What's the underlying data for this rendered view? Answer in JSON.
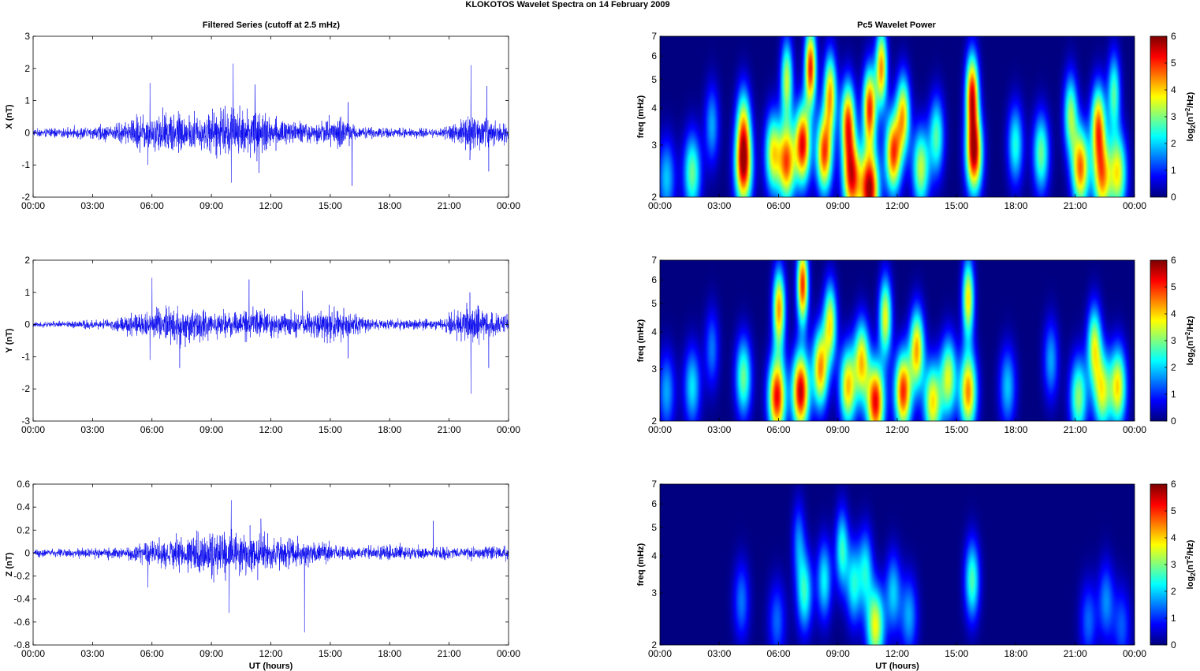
{
  "suptitle": "KLOKOTOS Wavelet Spectra on 14 February  2009",
  "left_title": "Filtered Series (cutoff at 2.5 mHz)",
  "right_title": "Pc5 Wavelet Power",
  "xlabel": "UT (hours)",
  "spec_ylabel": "freq (mHz)",
  "cbar_label": "log2(nT2/Hz)",
  "colors": {
    "trace": "#0000ee",
    "frame": "#000000",
    "background": "#ffffff"
  },
  "chart_data": [
    {
      "type": "line",
      "panel": "X",
      "ylabel": "X (nT)",
      "x_range_hours": [
        0,
        24
      ],
      "x_ticks": [
        "00:00",
        "03:00",
        "06:00",
        "09:00",
        "12:00",
        "15:00",
        "18:00",
        "21:00",
        "00:00"
      ],
      "ylim": [
        -2,
        3
      ],
      "y_ticks": [
        "-2",
        "-1",
        "0",
        "1",
        "2",
        "3"
      ],
      "envelope": [
        {
          "t": 0.0,
          "amp": 0.1
        },
        {
          "t": 1.5,
          "amp": 0.15
        },
        {
          "t": 4.2,
          "amp": 0.25
        },
        {
          "t": 5.5,
          "amp": 0.55
        },
        {
          "t": 6.5,
          "amp": 0.7
        },
        {
          "t": 8.0,
          "amp": 0.55
        },
        {
          "t": 10.0,
          "amp": 0.8
        },
        {
          "t": 11.0,
          "amp": 0.7
        },
        {
          "t": 13.0,
          "amp": 0.35
        },
        {
          "t": 15.5,
          "amp": 0.45
        },
        {
          "t": 16.5,
          "amp": 0.2
        },
        {
          "t": 18.5,
          "amp": 0.15
        },
        {
          "t": 20.5,
          "amp": 0.12
        },
        {
          "t": 22.0,
          "amp": 0.6
        },
        {
          "t": 23.0,
          "amp": 0.4
        },
        {
          "t": 24.0,
          "amp": 0.3
        }
      ],
      "spikes": [
        {
          "t": 5.9,
          "v": 1.55
        },
        {
          "t": 5.8,
          "v": -1.0
        },
        {
          "t": 10.1,
          "v": 2.15
        },
        {
          "t": 10.0,
          "v": -1.55
        },
        {
          "t": 11.2,
          "v": 1.5
        },
        {
          "t": 11.4,
          "v": -1.25
        },
        {
          "t": 16.1,
          "v": -1.65
        },
        {
          "t": 15.9,
          "v": 0.95
        },
        {
          "t": 22.1,
          "v": 2.1
        },
        {
          "t": 22.05,
          "v": -0.85
        },
        {
          "t": 22.9,
          "v": 1.45
        },
        {
          "t": 23.0,
          "v": -1.2
        }
      ]
    },
    {
      "type": "line",
      "panel": "Y",
      "ylabel": "Y (nT)",
      "x_range_hours": [
        0,
        24
      ],
      "x_ticks": [
        "00:00",
        "03:00",
        "06:00",
        "09:00",
        "12:00",
        "15:00",
        "18:00",
        "21:00",
        "00:00"
      ],
      "ylim": [
        -3,
        2
      ],
      "y_ticks": [
        "-3",
        "-2",
        "-1",
        "0",
        "1",
        "2"
      ],
      "envelope": [
        {
          "t": 0.0,
          "amp": 0.08
        },
        {
          "t": 4.0,
          "amp": 0.15
        },
        {
          "t": 5.7,
          "amp": 0.5
        },
        {
          "t": 7.5,
          "amp": 0.55
        },
        {
          "t": 9.5,
          "amp": 0.4
        },
        {
          "t": 11.0,
          "amp": 0.45
        },
        {
          "t": 13.0,
          "amp": 0.35
        },
        {
          "t": 15.5,
          "amp": 0.5
        },
        {
          "t": 17.0,
          "amp": 0.18
        },
        {
          "t": 20.5,
          "amp": 0.15
        },
        {
          "t": 22.0,
          "amp": 0.6
        },
        {
          "t": 24.0,
          "amp": 0.3
        }
      ],
      "spikes": [
        {
          "t": 6.0,
          "v": 1.45
        },
        {
          "t": 5.9,
          "v": -1.1
        },
        {
          "t": 7.4,
          "v": -1.35
        },
        {
          "t": 10.9,
          "v": 1.4
        },
        {
          "t": 13.6,
          "v": 1.05
        },
        {
          "t": 15.9,
          "v": -1.05
        },
        {
          "t": 22.1,
          "v": -2.15
        },
        {
          "t": 22.05,
          "v": 1.0
        },
        {
          "t": 23.0,
          "v": -1.35
        }
      ]
    },
    {
      "type": "line",
      "panel": "Z",
      "ylabel": "Z (nT)",
      "x_range_hours": [
        0,
        24
      ],
      "x_ticks": [
        "00:00",
        "03:00",
        "06:00",
        "09:00",
        "12:00",
        "15:00",
        "18:00",
        "21:00",
        "00:00"
      ],
      "ylim": [
        -0.8,
        0.6
      ],
      "y_ticks": [
        "-0.8",
        "-0.6",
        "-0.4",
        "-0.2",
        "0",
        "0.2",
        "0.4",
        "0.6"
      ],
      "envelope": [
        {
          "t": 0.0,
          "amp": 0.03
        },
        {
          "t": 4.5,
          "amp": 0.05
        },
        {
          "t": 6.5,
          "amp": 0.12
        },
        {
          "t": 9.5,
          "amp": 0.2
        },
        {
          "t": 11.5,
          "amp": 0.18
        },
        {
          "t": 14.0,
          "amp": 0.1
        },
        {
          "t": 16.5,
          "amp": 0.05
        },
        {
          "t": 18.5,
          "amp": 0.07
        },
        {
          "t": 20.5,
          "amp": 0.05
        },
        {
          "t": 24.0,
          "amp": 0.06
        }
      ],
      "spikes": [
        {
          "t": 10.0,
          "v": 0.46
        },
        {
          "t": 9.9,
          "v": -0.52
        },
        {
          "t": 13.7,
          "v": -0.69
        },
        {
          "t": 11.5,
          "v": 0.3
        },
        {
          "t": 5.8,
          "v": -0.3
        },
        {
          "t": 20.2,
          "v": 0.28
        }
      ]
    },
    {
      "type": "heatmap",
      "panel": "X",
      "x_range_hours": [
        0,
        24
      ],
      "x_ticks": [
        "00:00",
        "03:00",
        "06:00",
        "09:00",
        "12:00",
        "15:00",
        "18:00",
        "21:00",
        "00:00"
      ],
      "y_scale": "log",
      "ylim": [
        2,
        7
      ],
      "y_ticks": [
        "2",
        "3",
        "4",
        "5",
        "6",
        "7"
      ],
      "clim": [
        0,
        6
      ],
      "cbar_ticks": [
        "0",
        "1",
        "2",
        "3",
        "4",
        "5",
        "6"
      ],
      "blobs": [
        {
          "t": 0.3,
          "f": 2.3,
          "p": 2.0
        },
        {
          "t": 1.6,
          "f": 2.4,
          "p": 3.0
        },
        {
          "t": 2.6,
          "f": 3.5,
          "p": 1.8
        },
        {
          "t": 4.2,
          "f": 2.5,
          "p": 5.2
        },
        {
          "t": 4.2,
          "f": 3.5,
          "p": 3.2
        },
        {
          "t": 5.7,
          "f": 2.8,
          "p": 3.8
        },
        {
          "t": 6.4,
          "f": 2.6,
          "p": 4.8
        },
        {
          "t": 6.4,
          "f": 5.0,
          "p": 3.5
        },
        {
          "t": 7.2,
          "f": 3.0,
          "p": 5.5
        },
        {
          "t": 7.6,
          "f": 5.5,
          "p": 5.3
        },
        {
          "t": 8.3,
          "f": 2.8,
          "p": 5.0
        },
        {
          "t": 8.6,
          "f": 4.5,
          "p": 4.2
        },
        {
          "t": 9.5,
          "f": 3.6,
          "p": 4.8
        },
        {
          "t": 9.7,
          "f": 2.3,
          "p": 5.2
        },
        {
          "t": 10.6,
          "f": 2.1,
          "p": 6.0
        },
        {
          "t": 10.6,
          "f": 4.0,
          "p": 5.2
        },
        {
          "t": 11.2,
          "f": 5.5,
          "p": 4.5
        },
        {
          "t": 11.8,
          "f": 2.8,
          "p": 5.0
        },
        {
          "t": 12.3,
          "f": 3.8,
          "p": 4.0
        },
        {
          "t": 13.2,
          "f": 2.5,
          "p": 3.5
        },
        {
          "t": 14.0,
          "f": 3.2,
          "p": 2.8
        },
        {
          "t": 15.9,
          "f": 2.8,
          "p": 5.8
        },
        {
          "t": 15.8,
          "f": 4.5,
          "p": 5.2
        },
        {
          "t": 18.0,
          "f": 3.0,
          "p": 2.5
        },
        {
          "t": 19.3,
          "f": 2.8,
          "p": 3.0
        },
        {
          "t": 20.8,
          "f": 3.8,
          "p": 3.2
        },
        {
          "t": 21.3,
          "f": 2.5,
          "p": 4.8
        },
        {
          "t": 22.2,
          "f": 3.5,
          "p": 4.5
        },
        {
          "t": 22.4,
          "f": 2.3,
          "p": 4.2
        },
        {
          "t": 23.2,
          "f": 2.4,
          "p": 3.8
        },
        {
          "t": 23.0,
          "f": 4.5,
          "p": 2.8
        }
      ]
    },
    {
      "type": "heatmap",
      "panel": "Y",
      "x_range_hours": [
        0,
        24
      ],
      "x_ticks": [
        "00:00",
        "03:00",
        "06:00",
        "09:00",
        "12:00",
        "15:00",
        "18:00",
        "21:00",
        "00:00"
      ],
      "y_scale": "log",
      "ylim": [
        2,
        7
      ],
      "y_ticks": [
        "2",
        "3",
        "4",
        "5",
        "6",
        "7"
      ],
      "clim": [
        0,
        6
      ],
      "cbar_ticks": [
        "0",
        "1",
        "2",
        "3",
        "4",
        "5",
        "6"
      ],
      "blobs": [
        {
          "t": 0.3,
          "f": 2.5,
          "p": 1.8
        },
        {
          "t": 1.6,
          "f": 2.6,
          "p": 2.2
        },
        {
          "t": 2.6,
          "f": 3.5,
          "p": 1.5
        },
        {
          "t": 4.2,
          "f": 2.8,
          "p": 3.0
        },
        {
          "t": 5.9,
          "f": 2.4,
          "p": 5.5
        },
        {
          "t": 6.0,
          "f": 4.8,
          "p": 4.5
        },
        {
          "t": 7.1,
          "f": 2.5,
          "p": 5.8
        },
        {
          "t": 7.2,
          "f": 5.8,
          "p": 5.2
        },
        {
          "t": 8.1,
          "f": 3.0,
          "p": 4.5
        },
        {
          "t": 8.6,
          "f": 4.3,
          "p": 3.8
        },
        {
          "t": 9.5,
          "f": 2.6,
          "p": 4.2
        },
        {
          "t": 10.2,
          "f": 3.2,
          "p": 4.0
        },
        {
          "t": 10.9,
          "f": 2.3,
          "p": 5.5
        },
        {
          "t": 11.4,
          "f": 4.5,
          "p": 3.8
        },
        {
          "t": 12.3,
          "f": 2.5,
          "p": 5.2
        },
        {
          "t": 13.0,
          "f": 3.5,
          "p": 4.3
        },
        {
          "t": 13.8,
          "f": 2.3,
          "p": 4.0
        },
        {
          "t": 14.6,
          "f": 2.8,
          "p": 3.6
        },
        {
          "t": 15.6,
          "f": 2.5,
          "p": 4.6
        },
        {
          "t": 15.6,
          "f": 5.2,
          "p": 4.0
        },
        {
          "t": 17.6,
          "f": 2.6,
          "p": 2.0
        },
        {
          "t": 19.8,
          "f": 3.2,
          "p": 1.8
        },
        {
          "t": 21.2,
          "f": 2.4,
          "p": 3.2
        },
        {
          "t": 22.0,
          "f": 3.6,
          "p": 3.5
        },
        {
          "t": 22.4,
          "f": 2.5,
          "p": 3.6
        },
        {
          "t": 23.2,
          "f": 2.6,
          "p": 4.0
        }
      ]
    },
    {
      "type": "heatmap",
      "panel": "Z",
      "x_range_hours": [
        0,
        24
      ],
      "x_ticks": [
        "00:00",
        "03:00",
        "06:00",
        "09:00",
        "12:00",
        "15:00",
        "18:00",
        "21:00",
        "00:00"
      ],
      "y_scale": "log",
      "ylim": [
        2,
        7
      ],
      "y_ticks": [
        "2",
        "3",
        "4",
        "5",
        "6",
        "7"
      ],
      "clim": [
        0,
        6
      ],
      "cbar_ticks": [
        "0",
        "1",
        "2",
        "3",
        "4",
        "5",
        "6"
      ],
      "blobs": [
        {
          "t": 4.1,
          "f": 2.8,
          "p": 1.5
        },
        {
          "t": 5.9,
          "f": 2.4,
          "p": 1.4
        },
        {
          "t": 7.3,
          "f": 3.0,
          "p": 2.6
        },
        {
          "t": 7.0,
          "f": 4.5,
          "p": 1.5
        },
        {
          "t": 8.3,
          "f": 3.3,
          "p": 2.3
        },
        {
          "t": 9.2,
          "f": 4.2,
          "p": 2.6
        },
        {
          "t": 9.8,
          "f": 3.2,
          "p": 2.4
        },
        {
          "t": 10.9,
          "f": 2.3,
          "p": 3.8
        },
        {
          "t": 10.4,
          "f": 3.6,
          "p": 2.2
        },
        {
          "t": 11.8,
          "f": 3.0,
          "p": 2.0
        },
        {
          "t": 12.6,
          "f": 2.5,
          "p": 1.8
        },
        {
          "t": 15.8,
          "f": 3.3,
          "p": 2.8
        },
        {
          "t": 21.7,
          "f": 2.4,
          "p": 1.4
        },
        {
          "t": 22.6,
          "f": 2.8,
          "p": 1.6
        },
        {
          "t": 23.4,
          "f": 2.3,
          "p": 1.3
        }
      ]
    }
  ]
}
